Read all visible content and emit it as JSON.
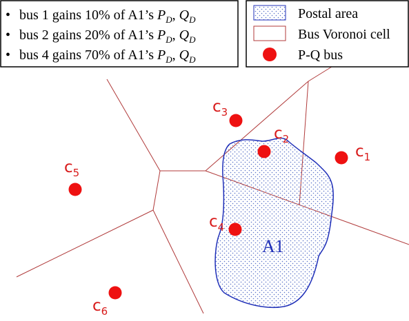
{
  "info_box": {
    "items": [
      {
        "prefix": "bus 1 gains 10% of A1’s ",
        "p": "P",
        "q": "Q",
        "sub": "D",
        "sep": ", "
      },
      {
        "prefix": "bus 2 gains 20% of A1’s ",
        "p": "P",
        "q": "Q",
        "sub": "D",
        "sep": ", "
      },
      {
        "prefix": "bus 4 gains 70% of A1’s ",
        "p": "P",
        "q": "Q",
        "sub": "D",
        "sep": ", "
      }
    ]
  },
  "legend": {
    "postal_area": "Postal area",
    "voronoi_cell": "Bus Voronoi cell",
    "pq_bus": "P-Q bus"
  },
  "area_label": "A1",
  "buses": [
    {
      "id": "c1",
      "base": "c",
      "sub": "1"
    },
    {
      "id": "c2",
      "base": "c",
      "sub": "2"
    },
    {
      "id": "c3",
      "base": "c",
      "sub": "3"
    },
    {
      "id": "c4",
      "base": "c",
      "sub": "4"
    },
    {
      "id": "c5",
      "base": "c",
      "sub": "5"
    },
    {
      "id": "c6",
      "base": "c",
      "sub": "6"
    }
  ],
  "colors": {
    "bus": "#ee1111",
    "bus_label": "#d81b1b",
    "voronoi_edge": "#b03a3a",
    "postal_outline": "#1f2fb8",
    "postal_fill_dots": "#5a73c8",
    "area_label": "#1f2fb8"
  }
}
